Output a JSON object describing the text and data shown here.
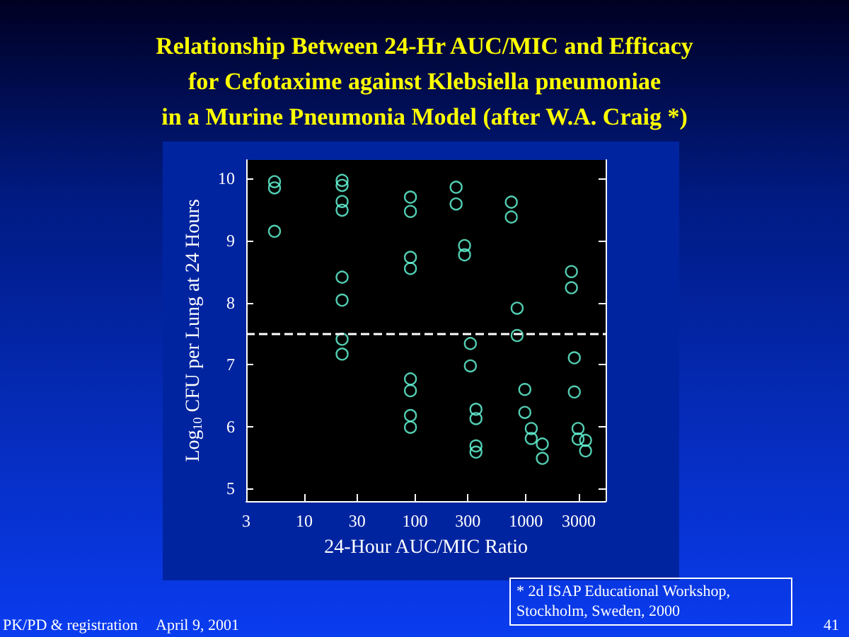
{
  "chart_data": {
    "type": "scatter",
    "title": "Relationship Between 24-Hr AUC/MIC and Efficacy\nfor Cefotaxime against Klebsiella pneumoniae\nin a Murine Pneumonia Model (after W.A. Craig *)",
    "xlabel": "24-Hour AUC/MIC Ratio",
    "ylabel": "Log$_{10}$ CFU per Lung at 24 Hours",
    "annotations": [
      "* 2d ISAP Educational Workshop,\nStockholm, Sweden, 2000",
      "PK/PD & registration",
      "April 9, 2001",
      "41"
    ],
    "series": [
      {
        "color": "#66ffdd",
        "x": [
          5.4,
          5.4,
          5.4,
          22,
          22,
          22,
          22,
          22,
          22,
          22,
          22,
          91,
          91,
          91,
          91,
          91,
          91,
          91,
          91,
          235,
          235,
          280,
          280,
          316,
          316,
          355,
          355,
          355,
          355,
          740,
          740,
          835,
          835,
          980,
          980,
          1120,
          1120,
          1410,
          1410,
          2580,
          2580,
          2740,
          2740,
          2960,
          2960,
          3460,
          3460
        ],
        "values": [
          9.95,
          9.85,
          9.15,
          9.97,
          9.89,
          9.63,
          9.49,
          8.41,
          8.04,
          7.41,
          7.17,
          9.7,
          9.47,
          8.73,
          8.55,
          6.77,
          6.58,
          6.18,
          5.99,
          9.86,
          9.59,
          8.92,
          8.77,
          7.34,
          6.98,
          6.28,
          6.13,
          5.69,
          5.59,
          9.62,
          9.38,
          7.91,
          7.47,
          6.6,
          6.23,
          5.97,
          5.81,
          5.72,
          5.49,
          8.5,
          8.24,
          7.11,
          6.56,
          5.97,
          5.8,
          5.78,
          5.61
        ]
      }
    ],
    "log": "x",
    "xlim": [
      3,
      5250
    ],
    "xticks": [
      3,
      10,
      30,
      100,
      300,
      1000,
      3000
    ],
    "ylim": [
      4.8,
      10.3
    ],
    "yticks": [
      5,
      6,
      7,
      8,
      9,
      10
    ],
    "ref_lines": [
      {
        "axis": "y",
        "value": 7.5,
        "color": "#ffffff",
        "line_style": "dashed"
      }
    ],
    "marker": "circle",
    "grid": false
  }
}
